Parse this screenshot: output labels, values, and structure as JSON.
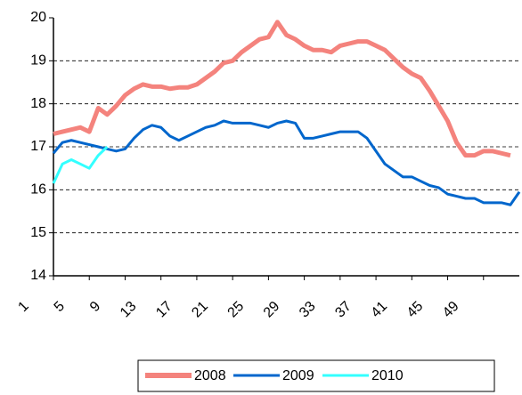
{
  "chart_data": {
    "type": "line",
    "x": [
      1,
      2,
      3,
      4,
      5,
      6,
      7,
      8,
      9,
      10,
      11,
      12,
      13,
      14,
      15,
      16,
      17,
      18,
      19,
      20,
      21,
      22,
      23,
      24,
      25,
      26,
      27,
      28,
      29,
      30,
      31,
      32,
      33,
      34,
      35,
      36,
      37,
      38,
      39,
      40,
      41,
      42,
      43,
      44,
      45,
      46,
      47,
      48,
      49,
      50,
      51,
      52,
      53
    ],
    "xlim": [
      1,
      53
    ],
    "xticks": [
      1,
      5,
      9,
      13,
      17,
      21,
      25,
      29,
      33,
      37,
      41,
      45,
      49
    ],
    "ylim": [
      14,
      20
    ],
    "yticks": [
      14,
      15,
      16,
      17,
      18,
      19,
      20
    ],
    "grid": true,
    "legend": "bottom",
    "series": [
      {
        "name": "2008",
        "color": "#f4837d",
        "values": [
          17.3,
          17.35,
          17.4,
          17.45,
          17.35,
          17.9,
          17.75,
          17.95,
          18.2,
          18.35,
          18.45,
          18.4,
          18.4,
          18.35,
          18.38,
          18.38,
          18.45,
          18.6,
          18.75,
          18.95,
          19.0,
          19.2,
          19.35,
          19.5,
          19.55,
          19.9,
          19.6,
          19.5,
          19.35,
          19.25,
          19.25,
          19.2,
          19.35,
          19.4,
          19.45,
          19.45,
          19.35,
          19.25,
          19.05,
          18.85,
          18.7,
          18.6,
          18.3,
          17.95,
          17.6,
          17.1,
          16.8,
          16.8,
          16.9,
          16.9,
          16.85,
          16.8,
          null
        ]
      },
      {
        "name": "2009",
        "color": "#0066cc",
        "values": [
          16.85,
          17.1,
          17.15,
          17.1,
          17.05,
          17.0,
          16.95,
          16.9,
          16.95,
          17.2,
          17.4,
          17.5,
          17.45,
          17.25,
          17.15,
          17.25,
          17.35,
          17.45,
          17.5,
          17.6,
          17.55,
          17.55,
          17.55,
          17.5,
          17.45,
          17.55,
          17.6,
          17.55,
          17.2,
          17.2,
          17.25,
          17.3,
          17.35,
          17.35,
          17.35,
          17.2,
          16.9,
          16.6,
          16.45,
          16.3,
          16.3,
          16.2,
          16.1,
          16.05,
          15.9,
          15.85,
          15.8,
          15.8,
          15.7,
          15.7,
          15.7,
          15.65,
          15.95
        ]
      },
      {
        "name": "2010",
        "color": "#33ffff",
        "values": [
          16.15,
          16.6,
          16.7,
          16.6,
          16.5,
          16.8,
          17.0,
          null,
          null,
          null,
          null,
          null,
          null,
          null,
          null,
          null,
          null,
          null,
          null,
          null,
          null,
          null,
          null,
          null,
          null,
          null,
          null,
          null,
          null,
          null,
          null,
          null,
          null,
          null,
          null,
          null,
          null,
          null,
          null,
          null,
          null,
          null,
          null,
          null,
          null,
          null,
          null,
          null,
          null,
          null,
          null,
          null,
          null
        ]
      }
    ]
  }
}
